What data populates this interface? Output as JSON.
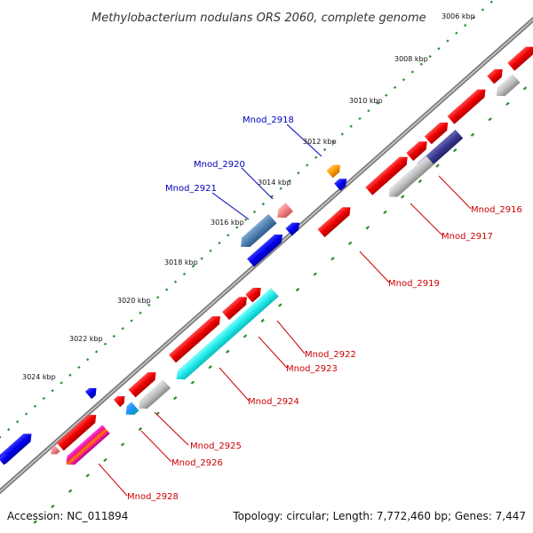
{
  "title": "Methylobacterium nodulans ORS 2060, complete genome",
  "footer": {
    "accession": "Accession: NC_011894",
    "summary": "Topology: circular; Length: 7,772,460 bp; Genes: 7,447"
  },
  "colors": {
    "backbone": "#888888",
    "ticks": "#2e8b2e",
    "label_forward": "#cc0000",
    "label_reverse": "#0000bb"
  },
  "kbp_labels": [
    "3006 kbp",
    "3008 kbp",
    "3010 kbp",
    "3012 kbp",
    "3014 kbp",
    "3016 kbp",
    "3018 kbp",
    "3020 kbp",
    "3022 kbp",
    "3024 kbp"
  ],
  "gene_labels": [
    {
      "id": "Mnod_2916",
      "side": "below"
    },
    {
      "id": "Mnod_2917",
      "side": "below"
    },
    {
      "id": "Mnod_2918",
      "side": "above"
    },
    {
      "id": "Mnod_2919",
      "side": "below"
    },
    {
      "id": "Mnod_2920",
      "side": "above"
    },
    {
      "id": "Mnod_2921",
      "side": "above"
    },
    {
      "id": "Mnod_2922",
      "side": "below"
    },
    {
      "id": "Mnod_2923",
      "side": "below"
    },
    {
      "id": "Mnod_2924",
      "side": "below"
    },
    {
      "id": "Mnod_2925",
      "side": "below"
    },
    {
      "id": "Mnod_2926",
      "side": "below"
    },
    {
      "id": "Mnod_2928",
      "side": "below"
    }
  ]
}
